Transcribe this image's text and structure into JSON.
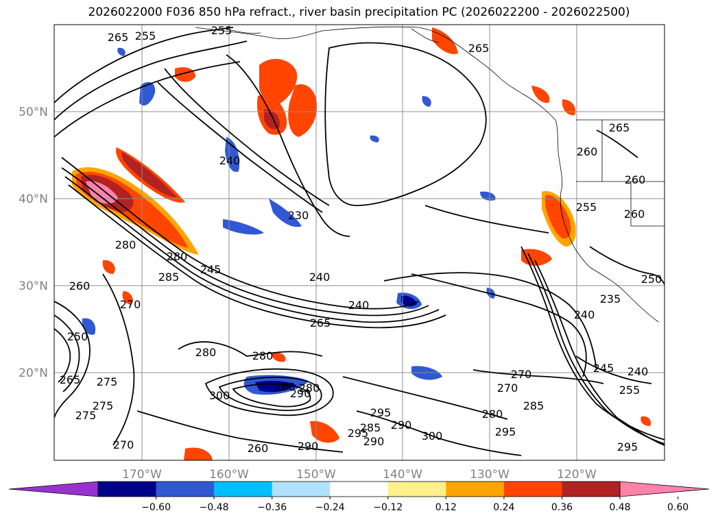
{
  "title": "2026022000 F036 850 hPa refract., river basin precipitation PC (2026022200 - 2026022500)",
  "map": {
    "lon_labels": [
      "170°W",
      "160°W",
      "150°W",
      "140°W",
      "130°W",
      "120°W"
    ],
    "lat_labels": [
      "50°N",
      "40°N",
      "30°N",
      "20°N"
    ],
    "contour_labels": [
      "265",
      "255",
      "255",
      "265",
      "240",
      "260",
      "265",
      "260",
      "255",
      "260",
      "250",
      "235",
      "240",
      "245",
      "240",
      "230",
      "240",
      "265",
      "280",
      "280",
      "285",
      "260",
      "270",
      "275",
      "280",
      "280",
      "250",
      "265",
      "275",
      "270",
      "275",
      "300",
      "280",
      "290",
      "280",
      "260",
      "290",
      "295",
      "300",
      "285",
      "290",
      "290",
      "295",
      "285",
      "270",
      "270",
      "280",
      "295",
      "245",
      "240",
      "255",
      "295"
    ],
    "shading_colors": {
      "neg_extreme": "#9932cc",
      "neg_high": "#00008b",
      "neg_mid": "#3158d4",
      "neg_low": "#00bfff",
      "neg_faint": "#b0e2ff",
      "pos_faint": "#fff08a",
      "pos_low": "#ffa500",
      "pos_mid": "#ff4500",
      "pos_high": "#b22222",
      "pos_extreme": "#ff82ab"
    }
  },
  "colorbar": {
    "ticks": [
      "−0.60",
      "−0.48",
      "−0.36",
      "−0.24",
      "−0.12",
      "0.12",
      "0.24",
      "0.36",
      "0.48",
      "0.60"
    ],
    "colors": [
      "#9932cc",
      "#00008b",
      "#3158d4",
      "#00bfff",
      "#b0e2ff",
      "#ffffff",
      "#fff08a",
      "#ffa500",
      "#ff4500",
      "#b22222",
      "#ff82ab"
    ]
  }
}
